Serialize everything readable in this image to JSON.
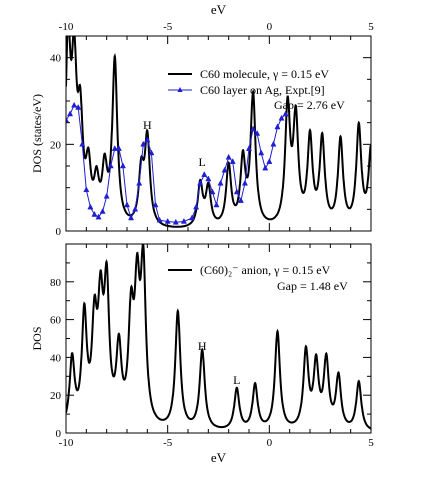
{
  "chart_data": [
    {
      "type": "line",
      "xlabel": "eV",
      "ylabel": "DOS (states/eV)",
      "xlim": [
        -10,
        5
      ],
      "ylim": [
        0,
        45
      ],
      "x_ticks": [
        -10,
        -5,
        0,
        5
      ],
      "y_ticks": [
        0,
        20,
        40
      ],
      "grid": false,
      "legend_position": "top-right",
      "gap_label": "Gap = 2.76 eV",
      "annotations": [
        {
          "text": "H",
          "x": -6.0,
          "y": 23.5
        },
        {
          "text": "L",
          "x": -3.3,
          "y": 15.0
        }
      ],
      "series": [
        {
          "name": "C60  molecule,  γ = 0.15 eV",
          "color": "#000000",
          "marker": "none",
          "peaks": [
            [
              -9.9,
              40,
              0.15
            ],
            [
              -9.6,
              33,
              0.15
            ],
            [
              -9.3,
              22,
              0.15
            ],
            [
              -8.9,
              12,
              0.15
            ],
            [
              -8.5,
              9,
              0.15
            ],
            [
              -8.1,
              12,
              0.15
            ],
            [
              -7.6,
              38,
              0.15
            ],
            [
              -6.3,
              12,
              0.15
            ],
            [
              -6.0,
              20,
              0.15
            ],
            [
              -3.4,
              10,
              0.15
            ],
            [
              -3.0,
              9,
              0.15
            ],
            [
              -2.0,
              14,
              0.15
            ],
            [
              -1.3,
              15,
              0.15
            ],
            [
              -0.8,
              30,
              0.15
            ],
            [
              0.9,
              27,
              0.15
            ],
            [
              1.3,
              24,
              0.15
            ],
            [
              2.0,
              20,
              0.15
            ],
            [
              2.6,
              20,
              0.15
            ],
            [
              3.5,
              20,
              0.15
            ],
            [
              4.4,
              23,
              0.15
            ],
            [
              5.0,
              18,
              0.15
            ]
          ]
        },
        {
          "name": "C60 layer on Ag, Expt.[9]",
          "color": "#1f1fd1",
          "marker": "triangle",
          "points": [
            [
              -10.0,
              25.6
            ],
            [
              -9.8,
              27.0
            ],
            [
              -9.6,
              29.0
            ],
            [
              -9.4,
              28.5
            ],
            [
              -9.2,
              20.0
            ],
            [
              -9.0,
              9.5
            ],
            [
              -8.8,
              5.5
            ],
            [
              -8.6,
              3.8
            ],
            [
              -8.4,
              3.2
            ],
            [
              -8.2,
              4.5
            ],
            [
              -8.0,
              8.0
            ],
            [
              -7.8,
              15.0
            ],
            [
              -7.6,
              19.0
            ],
            [
              -7.4,
              19.0
            ],
            [
              -7.2,
              15.0
            ],
            [
              -7.0,
              6.0
            ],
            [
              -6.8,
              3.0
            ],
            [
              -6.6,
              5.0
            ],
            [
              -6.4,
              11.0
            ],
            [
              -6.2,
              20.0
            ],
            [
              -6.0,
              21.0
            ],
            [
              -5.8,
              18.0
            ],
            [
              -5.6,
              6.0
            ],
            [
              -5.4,
              2.5
            ],
            [
              -5.0,
              2.2
            ],
            [
              -4.6,
              2.0
            ],
            [
              -4.2,
              2.2
            ],
            [
              -3.8,
              3.0
            ],
            [
              -3.6,
              5.5
            ],
            [
              -3.4,
              11.0
            ],
            [
              -3.2,
              13.0
            ],
            [
              -3.0,
              12.0
            ],
            [
              -2.8,
              9.0
            ],
            [
              -2.6,
              6.0
            ],
            [
              -2.4,
              11.0
            ],
            [
              -2.2,
              14.0
            ],
            [
              -2.0,
              17.0
            ],
            [
              -1.8,
              16.0
            ],
            [
              -1.6,
              9.0
            ],
            [
              -1.4,
              7.0
            ],
            [
              -1.2,
              11.0
            ],
            [
              -1.0,
              19.0
            ],
            [
              -0.8,
              23.5
            ],
            [
              -0.6,
              22.5
            ],
            [
              -0.4,
              18.0
            ],
            [
              -0.2,
              14.5
            ],
            [
              0.0,
              16.0
            ],
            [
              0.2,
              20.0
            ],
            [
              0.4,
              24.0
            ],
            [
              0.6,
              26.0
            ],
            [
              0.8,
              27.0
            ]
          ]
        }
      ]
    },
    {
      "type": "line",
      "xlabel": "eV",
      "ylabel": "DOS",
      "xlim": [
        -10,
        5
      ],
      "ylim": [
        0,
        100
      ],
      "x_ticks": [
        -10,
        -5,
        0,
        5
      ],
      "y_ticks": [
        0,
        20,
        40,
        60,
        80
      ],
      "grid": false,
      "legend_position": "top-right",
      "gap_label": "Gap = 1.48 eV",
      "annotations": [
        {
          "text": "H",
          "x": -3.3,
          "y": 44
        },
        {
          "text": "L",
          "x": -1.6,
          "y": 26
        }
      ],
      "series": [
        {
          "name": "(C60)₂⁻ anion, γ = 0.15 eV",
          "color": "#000000",
          "marker": "none",
          "peaks": [
            [
              -9.7,
              36,
              0.15
            ],
            [
              -9.1,
              58,
              0.15
            ],
            [
              -8.6,
              50,
              0.15
            ],
            [
              -8.3,
              57,
              0.15
            ],
            [
              -8.0,
              70,
              0.15
            ],
            [
              -7.4,
              39,
              0.15
            ],
            [
              -6.8,
              54,
              0.15
            ],
            [
              -6.5,
              65,
              0.15
            ],
            [
              -6.2,
              81,
              0.15
            ],
            [
              -4.5,
              62,
              0.15
            ],
            [
              -3.3,
              42,
              0.15
            ],
            [
              -1.6,
              22,
              0.15
            ],
            [
              -0.7,
              24,
              0.15
            ],
            [
              0.4,
              52,
              0.15
            ],
            [
              1.8,
              41,
              0.15
            ],
            [
              2.3,
              34,
              0.15
            ],
            [
              2.8,
              36,
              0.15
            ],
            [
              3.4,
              28,
              0.15
            ],
            [
              4.4,
              26,
              0.15
            ]
          ]
        }
      ]
    }
  ]
}
